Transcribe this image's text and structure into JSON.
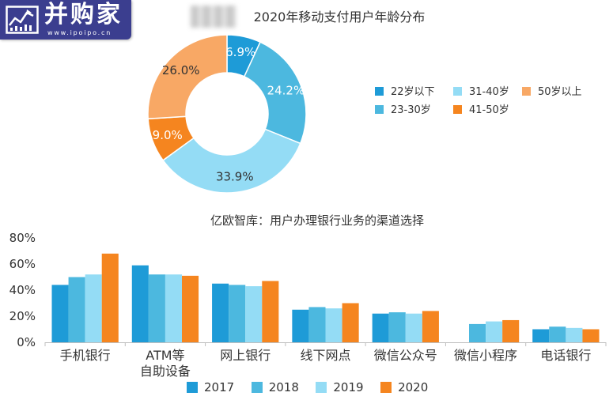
{
  "logo": {
    "name": "并购家",
    "url": "www.ipoipo.cn",
    "background": "#3b3e8f"
  },
  "chart_data": [
    {
      "type": "pie",
      "donut": true,
      "title": "2020年移动支付用户年龄分布",
      "categories": [
        "22岁以下",
        "23-30岁",
        "31-40岁",
        "41-50岁",
        "50岁以上"
      ],
      "values": [
        6.9,
        24.2,
        33.9,
        9.0,
        26.0
      ],
      "value_labels": [
        "6.9%",
        "24.2%",
        "33.9%",
        "9.0%",
        "26.0%"
      ],
      "colors": [
        "#1e9bd7",
        "#4cb8df",
        "#94dcf5",
        "#f5851f",
        "#f8a865"
      ],
      "label_colors": [
        "#ffffff",
        "#ffffff",
        "#333333",
        "#ffffff",
        "#333333"
      ],
      "legend": "right"
    },
    {
      "type": "bar",
      "title": "亿欧智库：用户办理银行业务的渠道选择",
      "categories": [
        "手机银行",
        "ATM等\n自助设备",
        "网上银行",
        "线下网点",
        "微信公众号",
        "微信小程序",
        "电话银行"
      ],
      "series": [
        {
          "name": "2017",
          "color": "#1e9bd7",
          "values": [
            44,
            59,
            45,
            25,
            22,
            null,
            10
          ]
        },
        {
          "name": "2018",
          "color": "#4cb8df",
          "values": [
            50,
            52,
            44,
            27,
            23,
            14,
            12
          ]
        },
        {
          "name": "2019",
          "color": "#94dcf5",
          "values": [
            52,
            52,
            43,
            26,
            22,
            16,
            11
          ]
        },
        {
          "name": "2020",
          "color": "#f5851f",
          "values": [
            68,
            51,
            47,
            30,
            24,
            17,
            10
          ]
        }
      ],
      "ylim": [
        0,
        80
      ],
      "yticks": [
        0,
        20,
        40,
        60,
        80
      ],
      "ytick_labels": [
        "0%",
        "20%",
        "40%",
        "60%",
        "80%"
      ],
      "grid": false,
      "legend": "bottom"
    }
  ]
}
